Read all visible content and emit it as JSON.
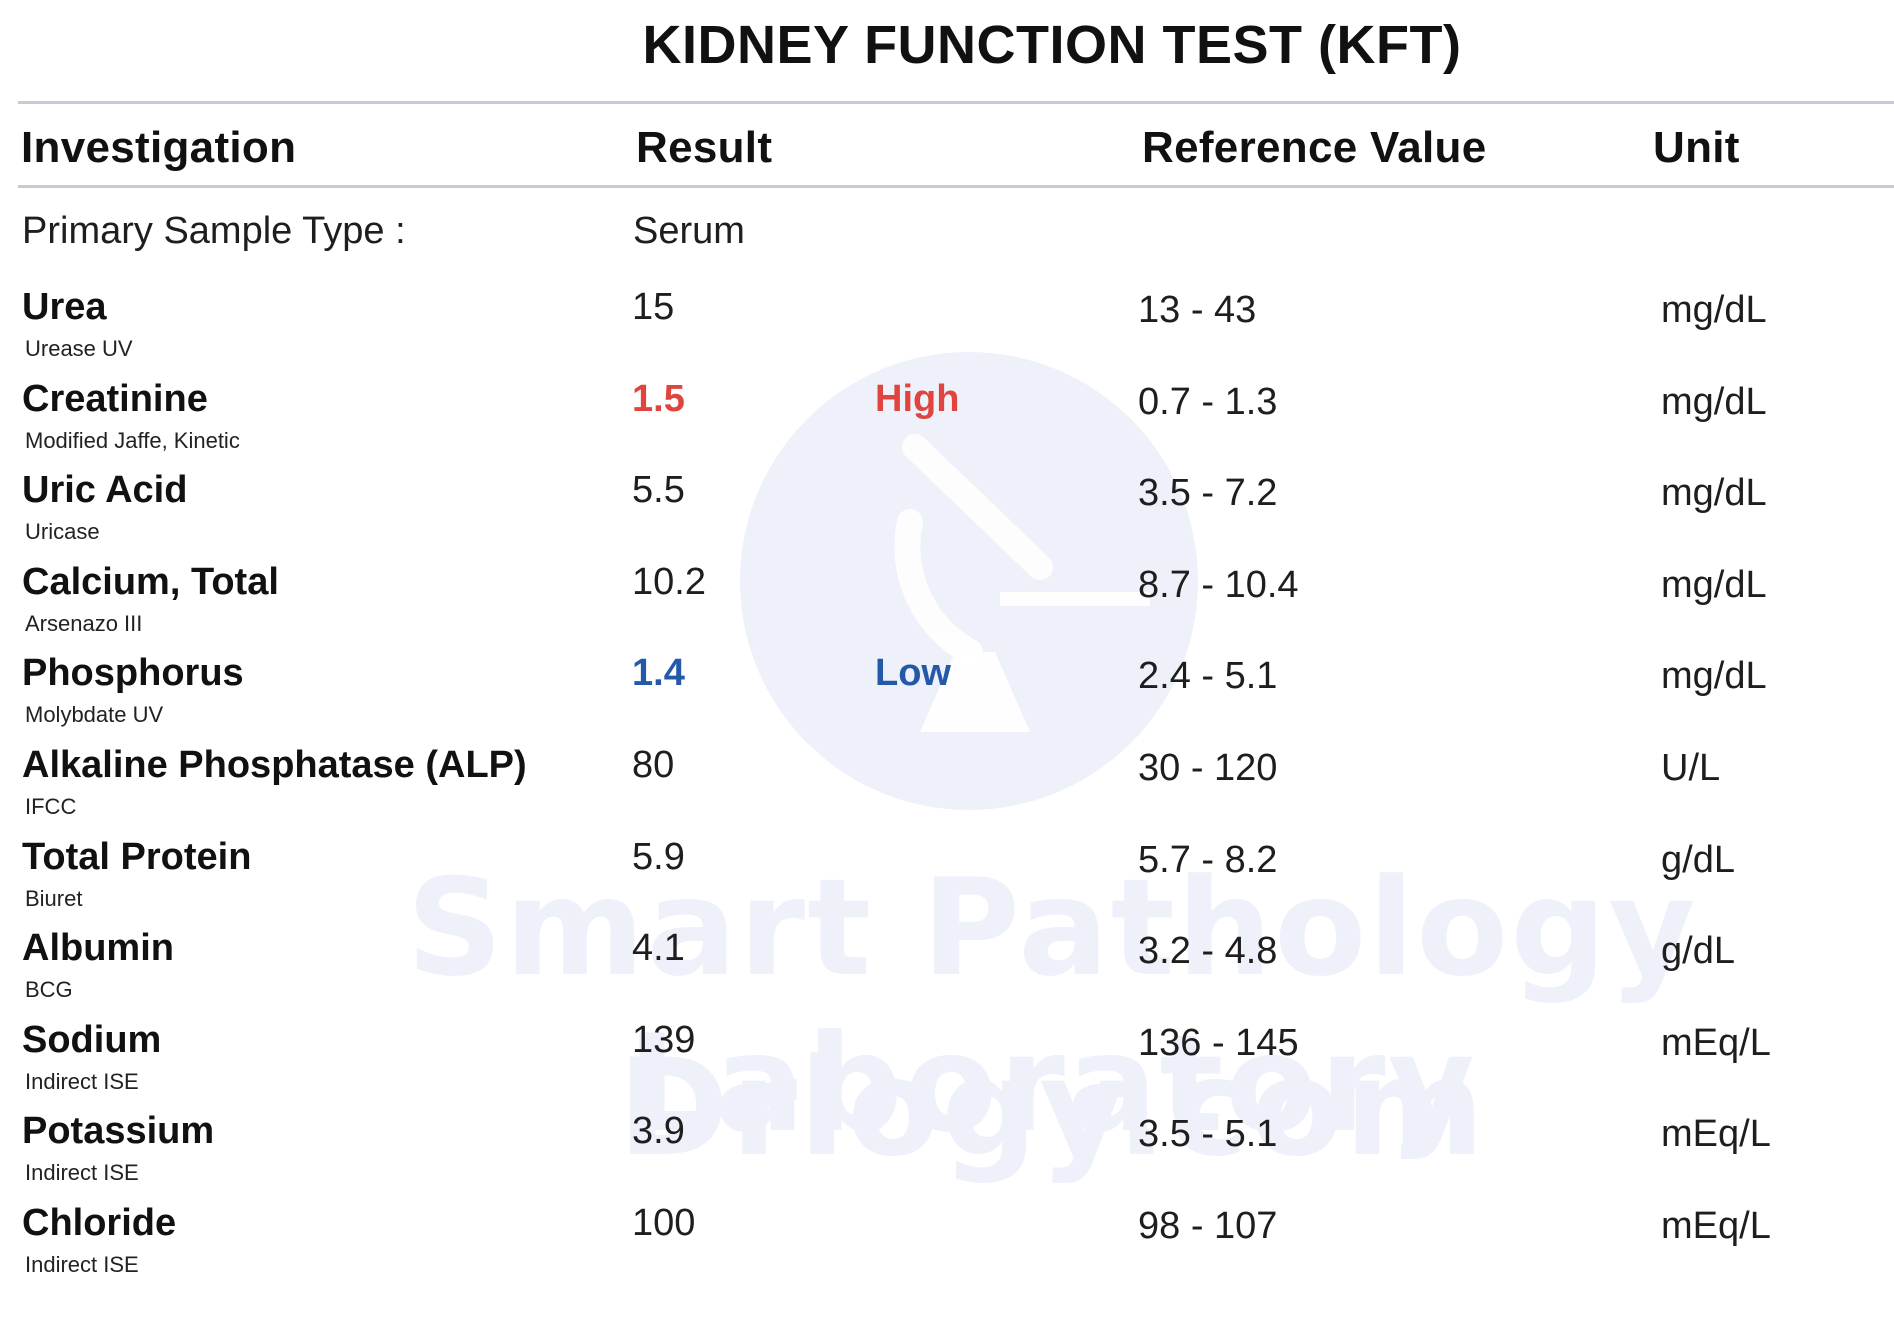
{
  "title": "KIDNEY FUNCTION TEST (KFT)",
  "headers": {
    "investigation": "Investigation",
    "result": "Result",
    "reference": "Reference Value",
    "unit": "Unit"
  },
  "sample": {
    "label": "Primary Sample Type :",
    "value": "Serum"
  },
  "rows": [
    {
      "name": "Urea",
      "method": "Urease UV",
      "result": "15",
      "flag": "",
      "reference": "13 - 43",
      "unit": "mg/dL"
    },
    {
      "name": "Creatinine",
      "method": "Modified Jaffe, Kinetic",
      "result": "1.5",
      "flag": "High",
      "reference": "0.7 - 1.3",
      "unit": "mg/dL"
    },
    {
      "name": "Uric Acid",
      "method": "Uricase",
      "result": "5.5",
      "flag": "",
      "reference": "3.5 - 7.2",
      "unit": "mg/dL"
    },
    {
      "name": "Calcium, Total",
      "method": "Arsenazo III",
      "result": "10.2",
      "flag": "",
      "reference": "8.7 - 10.4",
      "unit": "mg/dL"
    },
    {
      "name": "Phosphorus",
      "method": "Molybdate UV",
      "result": "1.4",
      "flag": "Low",
      "reference": "2.4 - 5.1",
      "unit": "mg/dL"
    },
    {
      "name": "Alkaline Phosphatase (ALP)",
      "method": "IFCC",
      "result": "80",
      "flag": "",
      "reference": "30 - 120",
      "unit": "U/L"
    },
    {
      "name": "Total Protein",
      "method": "Biuret",
      "result": "5.9",
      "flag": "",
      "reference": "5.7 - 8.2",
      "unit": "g/dL"
    },
    {
      "name": "Albumin",
      "method": "BCG",
      "result": "4.1",
      "flag": "",
      "reference": "3.2 - 4.8",
      "unit": "g/dL"
    },
    {
      "name": "Sodium",
      "method": "Indirect ISE",
      "result": "139",
      "flag": "",
      "reference": "136 - 145",
      "unit": "mEq/L"
    },
    {
      "name": "Potassium",
      "method": "Indirect ISE",
      "result": "3.9",
      "flag": "",
      "reference": "3.5 - 5.1",
      "unit": "mEq/L"
    },
    {
      "name": "Chloride",
      "method": "Indirect ISE",
      "result": "100",
      "flag": "",
      "reference": "98 - 107",
      "unit": "mEq/L"
    }
  ],
  "watermark": {
    "line1": "Smart Pathology Laboratory",
    "line2": "Drlogy.com",
    "icon": "microscope-icon"
  }
}
